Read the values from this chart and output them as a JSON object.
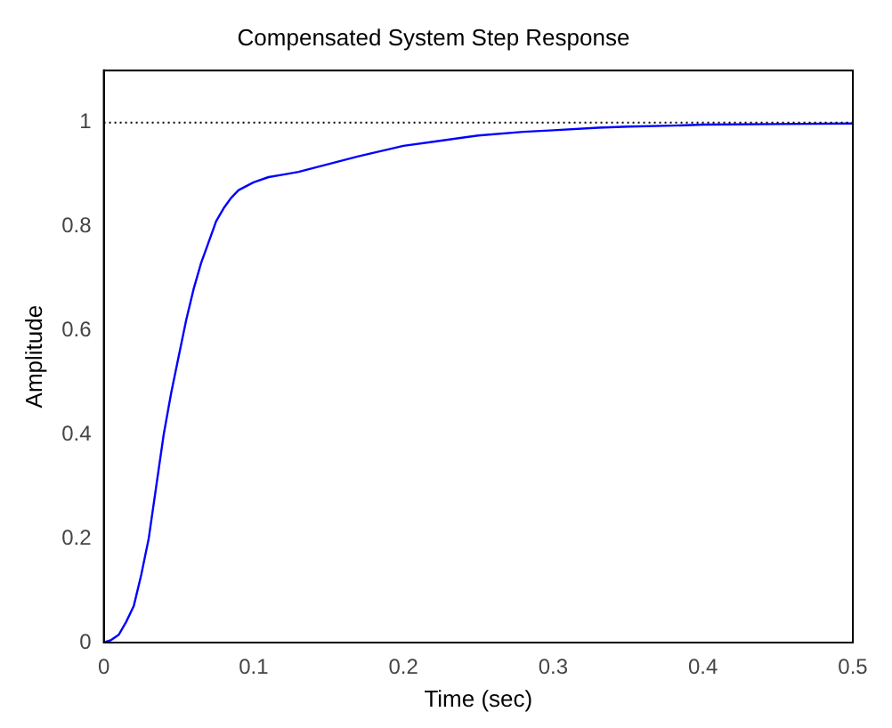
{
  "chart_data": {
    "type": "line",
    "title": "Compensated System Step Response",
    "xlabel": "Time (sec)",
    "ylabel": "Amplitude",
    "x": [
      0,
      0.005,
      0.01,
      0.015,
      0.02,
      0.025,
      0.03,
      0.035,
      0.04,
      0.045,
      0.05,
      0.055,
      0.06,
      0.065,
      0.07,
      0.075,
      0.08,
      0.085,
      0.09,
      0.1,
      0.11,
      0.12,
      0.13,
      0.15,
      0.17,
      0.2,
      0.22,
      0.25,
      0.28,
      0.3,
      0.33,
      0.35,
      0.38,
      0.4,
      0.45,
      0.5
    ],
    "series": [
      {
        "color": "#0000ff",
        "values": [
          0,
          0.005,
          0.015,
          0.04,
          0.07,
          0.13,
          0.2,
          0.3,
          0.4,
          0.48,
          0.55,
          0.62,
          0.68,
          0.73,
          0.77,
          0.81,
          0.835,
          0.855,
          0.87,
          0.885,
          0.895,
          0.9,
          0.905,
          0.92,
          0.935,
          0.955,
          0.963,
          0.975,
          0.982,
          0.985,
          0.99,
          0.992,
          0.994,
          0.996,
          0.997,
          0.998
        ]
      }
    ],
    "xlim": [
      0,
      0.5
    ],
    "ylim": [
      0,
      1.1
    ],
    "xticks": [
      0,
      0.1,
      0.2,
      0.3,
      0.4,
      0.5
    ],
    "yticks": [
      0,
      0.2,
      0.4,
      0.6,
      0.8,
      1
    ],
    "ref_lines": [
      {
        "axis": "y",
        "value": 1,
        "color": "#000000",
        "line_style": "dotted"
      }
    ],
    "grid": false,
    "legend": false,
    "marker": "none",
    "line_style": "solid"
  }
}
